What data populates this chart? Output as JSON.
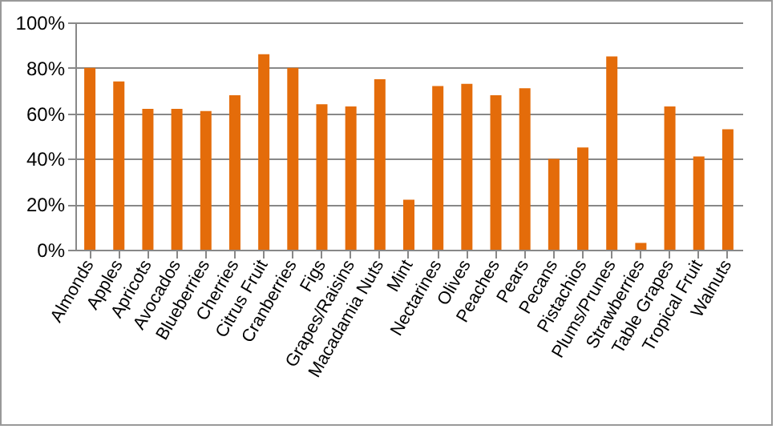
{
  "chart_data": {
    "type": "bar",
    "categories": [
      "Almonds",
      "Apples",
      "Apricots",
      "Avocados",
      "Blueberries",
      "Cherries",
      "Citrus Fruit",
      "Cranberries",
      "Figs",
      "Grapes/Raisins",
      "Macadamia Nuts",
      "Mint",
      "Nectarines",
      "Olives",
      "Peaches",
      "Pears",
      "Pecans",
      "Pistachios",
      "Plums/Prunes",
      "Strawberries",
      "Table Grapes",
      "Tropical Fruit",
      "Walnuts"
    ],
    "values": [
      80,
      74,
      62,
      62,
      61,
      68,
      86,
      80,
      64,
      63,
      75,
      22,
      72,
      73,
      68,
      71,
      40,
      45,
      85,
      3,
      63,
      41,
      53
    ],
    "color": "#e46c0a",
    "ylim": [
      0,
      100
    ],
    "yticks": [
      {
        "value": 0,
        "label": "0%"
      },
      {
        "value": 20,
        "label": "20%"
      },
      {
        "value": 40,
        "label": "40%"
      },
      {
        "value": 60,
        "label": "60%"
      },
      {
        "value": 80,
        "label": "80%"
      },
      {
        "value": 100,
        "label": "100%"
      }
    ],
    "grid": "y"
  }
}
